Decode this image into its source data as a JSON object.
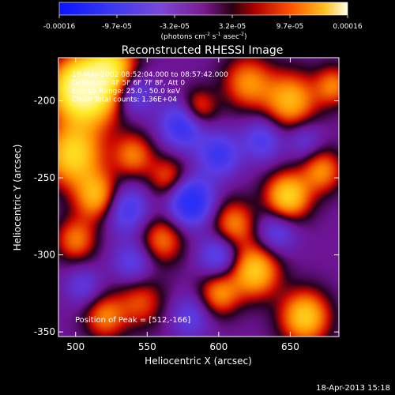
{
  "chart_data": {
    "type": "heatmap",
    "title": "Reconstructed RHESSI Image",
    "xlabel": "Heliocentric X (arcsec)",
    "ylabel": "Heliocentric Y (arcsec)",
    "xlim": [
      488,
      684
    ],
    "ylim": [
      -353,
      -172
    ],
    "xticks": [
      500,
      550,
      600,
      650
    ],
    "yticks": [
      -200,
      -250,
      -300,
      -350
    ],
    "colorbar": {
      "ticks": [
        "-0.00016",
        "-9.7e-05",
        "-3.2e-05",
        "3.2e-05",
        "9.7e-05",
        "0.00016"
      ],
      "unit_main": "(photons cm",
      "unit_exp1": "-2",
      "unit_mid": " s",
      "unit_exp2": "-1",
      "unit_end": " asec",
      "unit_exp3": "-2",
      "unit_close": ")",
      "range": [
        -0.00016,
        0.00016
      ]
    },
    "annotations": [
      "18-May-2002 08:52:04.000 to 08:57:42.000",
      "Detectors: 4F 5F 6F 7F 8F, Att 0",
      "Energy Range: 25.0 - 50.0 keV",
      "Clean      Total counts: 1.36E+04"
    ],
    "peak_label": "Position of Peak = [512,-166]",
    "blobs": [
      {
        "x": 510,
        "y": -195,
        "v": 1.0,
        "s": 16
      },
      {
        "x": 498,
        "y": -235,
        "v": 0.9,
        "s": 14
      },
      {
        "x": 500,
        "y": -190,
        "v": 0.7,
        "s": 12
      },
      {
        "x": 525,
        "y": -178,
        "v": 0.8,
        "s": 12
      },
      {
        "x": 515,
        "y": -262,
        "v": 0.75,
        "s": 11
      },
      {
        "x": 500,
        "y": -290,
        "v": 0.55,
        "s": 10
      },
      {
        "x": 540,
        "y": -235,
        "v": 0.55,
        "s": 10
      },
      {
        "x": 565,
        "y": -250,
        "v": 0.5,
        "s": 10
      },
      {
        "x": 560,
        "y": -290,
        "v": 0.55,
        "s": 11
      },
      {
        "x": 545,
        "y": -330,
        "v": 0.45,
        "s": 12
      },
      {
        "x": 585,
        "y": -205,
        "v": 0.6,
        "s": 9
      },
      {
        "x": 620,
        "y": -188,
        "v": 0.6,
        "s": 12
      },
      {
        "x": 650,
        "y": -200,
        "v": 0.75,
        "s": 13
      },
      {
        "x": 672,
        "y": -245,
        "v": 0.6,
        "s": 10
      },
      {
        "x": 648,
        "y": -262,
        "v": 0.9,
        "s": 11
      },
      {
        "x": 610,
        "y": -280,
        "v": 0.6,
        "s": 11
      },
      {
        "x": 625,
        "y": -310,
        "v": 0.85,
        "s": 12
      },
      {
        "x": 600,
        "y": -325,
        "v": 0.6,
        "s": 10
      },
      {
        "x": 660,
        "y": -340,
        "v": 0.85,
        "s": 12
      },
      {
        "x": 520,
        "y": -340,
        "v": 0.55,
        "s": 10
      },
      {
        "x": 680,
        "y": -190,
        "v": 0.55,
        "s": 9
      },
      {
        "x": 540,
        "y": -195,
        "v": -0.55,
        "s": 10
      },
      {
        "x": 575,
        "y": -215,
        "v": -0.75,
        "s": 11
      },
      {
        "x": 600,
        "y": -235,
        "v": -0.6,
        "s": 10
      },
      {
        "x": 630,
        "y": -225,
        "v": -0.5,
        "s": 10
      },
      {
        "x": 580,
        "y": -265,
        "v": -0.95,
        "s": 11
      },
      {
        "x": 535,
        "y": -270,
        "v": -0.6,
        "s": 11
      },
      {
        "x": 540,
        "y": -305,
        "v": -0.45,
        "s": 10
      },
      {
        "x": 600,
        "y": -300,
        "v": -0.55,
        "s": 10
      },
      {
        "x": 640,
        "y": -285,
        "v": -0.45,
        "s": 10
      },
      {
        "x": 660,
        "y": -225,
        "v": -0.35,
        "s": 9
      },
      {
        "x": 580,
        "y": -340,
        "v": -0.4,
        "s": 10
      },
      {
        "x": 505,
        "y": -320,
        "v": -0.35,
        "s": 9
      }
    ]
  },
  "footer": {
    "timestamp": "18-Apr-2013 15:18"
  }
}
